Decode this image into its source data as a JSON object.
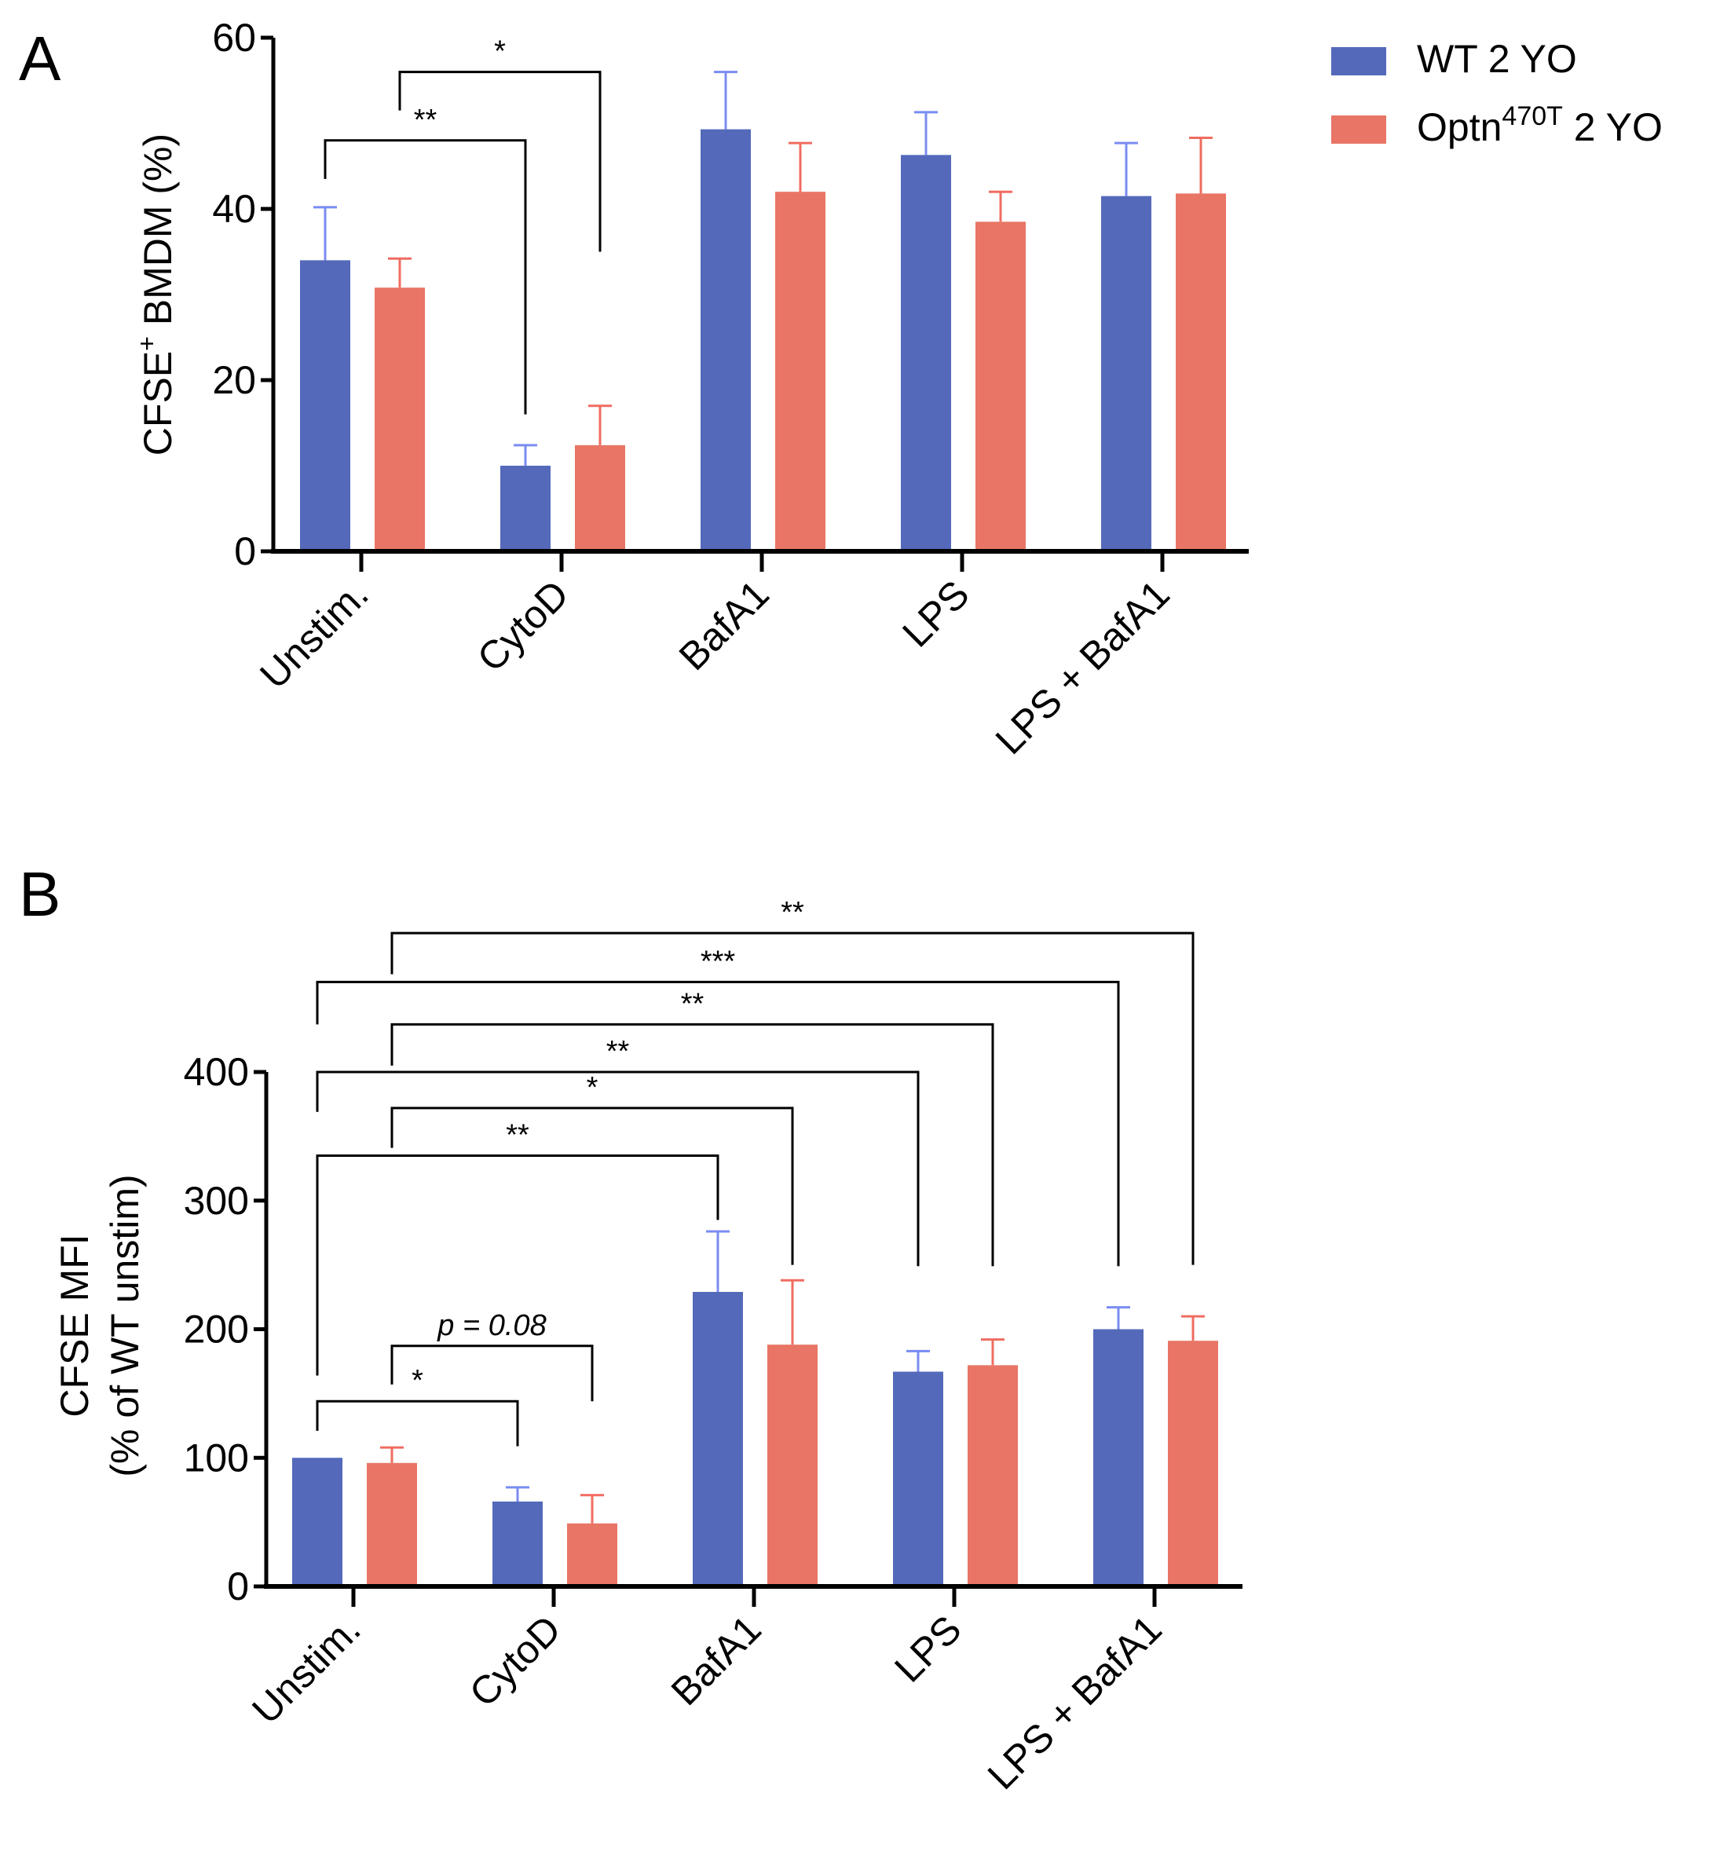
{
  "colors": {
    "wt": "#5469BA",
    "wt_err": "#7A8CF2",
    "optn": "#E87565",
    "optn_err": "#F06C60",
    "axis": "#000000"
  },
  "legend": [
    {
      "label_main": "WT 2 YO",
      "label_sup": "",
      "label_rest": "",
      "color": "#5469BA"
    },
    {
      "label_main": "Optn",
      "label_sup": "470T",
      "label_rest": " 2 YO",
      "color": "#E87565"
    }
  ],
  "chart_data": [
    {
      "type": "bar",
      "panel": "A",
      "title": "",
      "categories": [
        "Unstim.",
        "CytoD",
        "BafA1",
        "LPS",
        "LPS + BafA1"
      ],
      "series": [
        {
          "name": "WT 2 YO",
          "values": [
            34,
            10,
            49.3,
            46.3,
            41.5
          ],
          "error_upper": [
            40.2,
            12.4,
            56,
            51.3,
            47.7
          ]
        },
        {
          "name": "Optn470T 2 YO",
          "values": [
            30.8,
            12.4,
            42,
            38.5,
            41.8
          ],
          "error_upper": [
            34.2,
            17,
            47.7,
            42,
            48.3
          ]
        }
      ],
      "ylabel_main": "CFSE",
      "ylabel_sup": "+",
      "ylabel_rest": " BMDM (%)",
      "ylabel2": "",
      "ylim": [
        0,
        60
      ],
      "yticks": [
        0,
        20,
        40,
        60
      ],
      "grid": false,
      "legend_position": "top-right",
      "significance": [
        {
          "label": "**",
          "italic": false,
          "from": [
            0,
            0
          ],
          "to": [
            1,
            0
          ],
          "y": 48,
          "left_end": 43.5,
          "right_end": 16
        },
        {
          "label": "*",
          "italic": false,
          "from": [
            0,
            1
          ],
          "to": [
            1,
            1
          ],
          "y": 56,
          "left_end": 51.5,
          "right_end": 35
        }
      ]
    },
    {
      "type": "bar",
      "panel": "B",
      "title": "",
      "categories": [
        "Unstim.",
        "CytoD",
        "BafA1",
        "LPS",
        "LPS + BafA1"
      ],
      "series": [
        {
          "name": "WT 2 YO",
          "values": [
            100,
            66,
            229,
            167,
            200
          ],
          "error_upper": [
            100,
            77,
            276,
            183,
            217
          ]
        },
        {
          "name": "Optn470T 2 YO",
          "values": [
            96,
            49,
            188,
            172,
            191
          ],
          "error_upper": [
            108,
            71,
            238,
            192,
            210
          ]
        }
      ],
      "ylabel_main": "CFSE MFI",
      "ylabel_sup": "",
      "ylabel_rest": "",
      "ylabel2": "(% of WT unstim)",
      "ylim": [
        0,
        400
      ],
      "yticks": [
        0,
        100,
        200,
        300,
        400
      ],
      "grid": false,
      "legend_position": "none",
      "significance": [
        {
          "label": "*",
          "italic": false,
          "from": [
            0,
            0
          ],
          "to": [
            1,
            0
          ],
          "y": 144,
          "left_end": 121,
          "right_end": 109
        },
        {
          "label": "p = 0.08",
          "italic": true,
          "from": [
            0,
            1
          ],
          "to": [
            1,
            1
          ],
          "y": 187,
          "left_end": 157,
          "right_end": 144
        },
        {
          "label": "**",
          "italic": false,
          "from": [
            0,
            0
          ],
          "to": [
            2,
            0
          ],
          "y": 335,
          "left_end": 164,
          "right_end": 285
        },
        {
          "label": "*",
          "italic": false,
          "from": [
            0,
            1
          ],
          "to": [
            2,
            1
          ],
          "y": 372,
          "left_end": 341,
          "right_end": 250
        },
        {
          "label": "**",
          "italic": false,
          "from": [
            0,
            0
          ],
          "to": [
            3,
            0
          ],
          "y": 400,
          "left_end": 369,
          "right_end": 249
        },
        {
          "label": "**",
          "italic": false,
          "from": [
            0,
            1
          ],
          "to": [
            3,
            1
          ],
          "y": 437,
          "left_end": 405,
          "right_end": 249
        },
        {
          "label": "***",
          "italic": false,
          "from": [
            0,
            0
          ],
          "to": [
            4,
            0
          ],
          "y": 470,
          "left_end": 437,
          "right_end": 249
        },
        {
          "label": "**",
          "italic": false,
          "from": [
            0,
            1
          ],
          "to": [
            4,
            1
          ],
          "y": 508,
          "left_end": 476,
          "right_end": 250
        }
      ]
    }
  ]
}
